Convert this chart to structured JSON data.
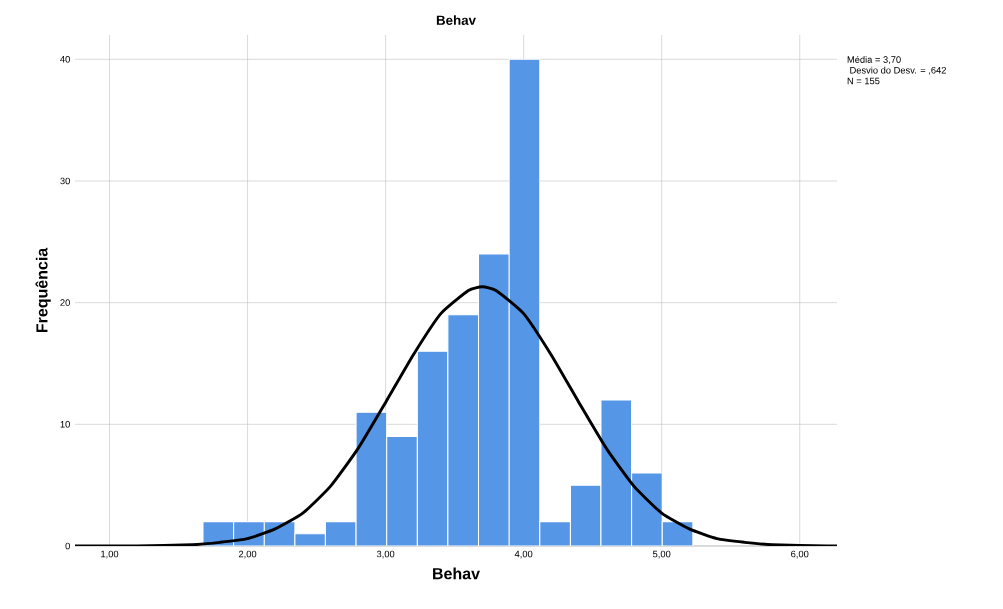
{
  "chart_data": {
    "type": "histogram",
    "title": "Behav",
    "xlabel": "Behav",
    "ylabel": "Frequência",
    "bins": [
      1.677,
      1.899,
      2.121,
      2.343,
      2.564,
      2.786,
      3.008,
      3.23,
      3.451,
      3.673,
      3.895,
      4.117,
      4.339,
      4.56,
      4.782,
      5.004,
      5.226
    ],
    "values": [
      2,
      2,
      2,
      1,
      2,
      11,
      9,
      16,
      19,
      24,
      40,
      2,
      5,
      12,
      6,
      2
    ],
    "color": "#5596e6",
    "series": [
      {
        "type": "line",
        "color": "#000000",
        "x": [
          0.75,
          1.2,
          1.6,
          1.8,
          2.0,
          2.2,
          2.4,
          2.6,
          2.8,
          3.0,
          3.2,
          3.4,
          3.6,
          3.7,
          3.8,
          4.0,
          4.2,
          4.4,
          4.6,
          4.8,
          5.0,
          5.2,
          5.4,
          5.6,
          5.8,
          6.2,
          6.27
        ],
        "values": [
          0,
          0,
          0.1,
          0.3,
          0.6,
          1.4,
          2.7,
          4.9,
          8,
          11.8,
          15.7,
          19.1,
          21,
          21.3,
          21,
          19.1,
          15.7,
          11.8,
          8,
          4.9,
          2.7,
          1.4,
          0.6,
          0.3,
          0.1,
          0,
          0
        ]
      }
    ],
    "xlim": [
      0.75,
      6.27
    ],
    "ylim": [
      0,
      42
    ],
    "xticks": [
      {
        "value": 1,
        "label": "1,00"
      },
      {
        "value": 2,
        "label": "2,00"
      },
      {
        "value": 3,
        "label": "3,00"
      },
      {
        "value": 4,
        "label": "4,00"
      },
      {
        "value": 5,
        "label": "5,00"
      },
      {
        "value": 6,
        "label": "6,00"
      }
    ],
    "yticks": [
      0,
      10,
      20,
      30,
      40
    ],
    "grid": true,
    "line_style": "solid",
    "marker": "none",
    "annotations": [
      "Média = 3,70",
      " Desvio do Desv. = ,642",
      "N = 155"
    ]
  }
}
